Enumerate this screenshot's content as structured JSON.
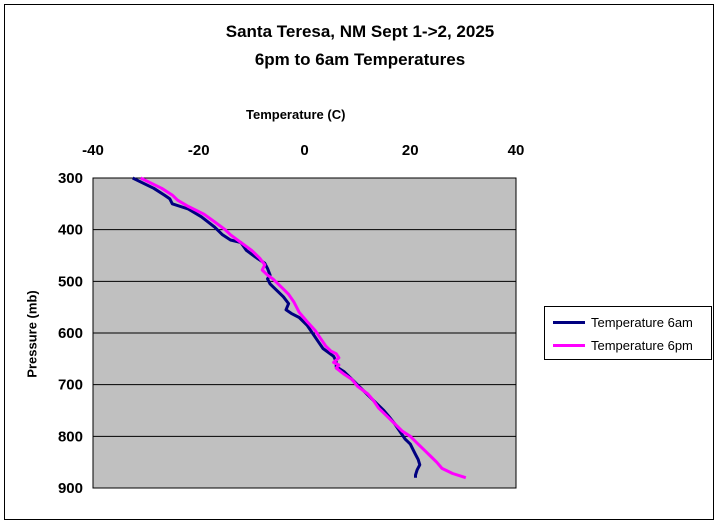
{
  "chart_data": {
    "type": "line",
    "title": "Santa Teresa, NM Sept 1->2, 2025",
    "subtitle": "6pm to 6am Temperatures",
    "xlabel": "Temperature (C)",
    "ylabel": "Pressure (mb)",
    "xlim": [
      -40,
      40
    ],
    "ylim": [
      300,
      900
    ],
    "y_inverted": true,
    "x_axis_position": "top",
    "x_ticks": [
      "-40",
      "-20",
      "0",
      "20",
      "40"
    ],
    "y_ticks": [
      "300",
      "400",
      "500",
      "600",
      "700",
      "800",
      "900"
    ],
    "plot_background": "#c0c0c0",
    "grid": "horizontal",
    "legend_position": "right",
    "series": [
      {
        "name": "Temperature 6am",
        "color": "#000080",
        "points": [
          [
            -32.5,
            300
          ],
          [
            -30.5,
            310
          ],
          [
            -28.5,
            320
          ],
          [
            -26.5,
            333
          ],
          [
            -25.5,
            340
          ],
          [
            -25,
            350
          ],
          [
            -22,
            360
          ],
          [
            -19.5,
            375
          ],
          [
            -17,
            395
          ],
          [
            -15.5,
            410
          ],
          [
            -14,
            420
          ],
          [
            -12,
            425
          ],
          [
            -11,
            440
          ],
          [
            -9,
            455
          ],
          [
            -7.5,
            465
          ],
          [
            -7,
            475
          ],
          [
            -6.5,
            488
          ],
          [
            -7,
            495
          ],
          [
            -6.5,
            505
          ],
          [
            -5,
            520
          ],
          [
            -4,
            530
          ],
          [
            -3,
            543
          ],
          [
            -3.5,
            555
          ],
          [
            -2.5,
            562
          ],
          [
            -1,
            570
          ],
          [
            0.5,
            585
          ],
          [
            1.5,
            600
          ],
          [
            2.5,
            615
          ],
          [
            3.5,
            630
          ],
          [
            5.5,
            645
          ],
          [
            6,
            655
          ],
          [
            6,
            665
          ],
          [
            7.5,
            675
          ],
          [
            9,
            690
          ],
          [
            10,
            700
          ],
          [
            11.5,
            715
          ],
          [
            13,
            730
          ],
          [
            14,
            740
          ],
          [
            15,
            750
          ],
          [
            16,
            762
          ],
          [
            17,
            775
          ],
          [
            18,
            790
          ],
          [
            19,
            805
          ],
          [
            20,
            815
          ],
          [
            20.5,
            825
          ],
          [
            21,
            835
          ],
          [
            21.5,
            845
          ],
          [
            21.8,
            855
          ],
          [
            21.3,
            865
          ],
          [
            21,
            875
          ],
          [
            21,
            880
          ]
        ]
      },
      {
        "name": "Temperature 6pm",
        "color": "#ff00ff",
        "points": [
          [
            -31,
            300
          ],
          [
            -29,
            310
          ],
          [
            -27,
            320
          ],
          [
            -25,
            333
          ],
          [
            -24,
            343
          ],
          [
            -22,
            355
          ],
          [
            -19,
            370
          ],
          [
            -17,
            385
          ],
          [
            -15,
            400
          ],
          [
            -14,
            410
          ],
          [
            -12,
            425
          ],
          [
            -10,
            440
          ],
          [
            -8.5,
            455
          ],
          [
            -7.5,
            468
          ],
          [
            -8,
            478
          ],
          [
            -7,
            488
          ],
          [
            -6,
            495
          ],
          [
            -5,
            505
          ],
          [
            -4,
            515
          ],
          [
            -3,
            525
          ],
          [
            -2,
            540
          ],
          [
            -1,
            560
          ],
          [
            0.5,
            578
          ],
          [
            2,
            595
          ],
          [
            3,
            610
          ],
          [
            4,
            625
          ],
          [
            5,
            635
          ],
          [
            6,
            640
          ],
          [
            6.5,
            648
          ],
          [
            5.5,
            657
          ],
          [
            6.5,
            662
          ],
          [
            6,
            668
          ],
          [
            7.5,
            680
          ],
          [
            9,
            690
          ],
          [
            10,
            703
          ],
          [
            12,
            718
          ],
          [
            13,
            730
          ],
          [
            14,
            745
          ],
          [
            15.5,
            760
          ],
          [
            17,
            775
          ],
          [
            18.5,
            790
          ],
          [
            20,
            800
          ],
          [
            21,
            810
          ],
          [
            22,
            820
          ],
          [
            23,
            830
          ],
          [
            24,
            840
          ],
          [
            25,
            850
          ],
          [
            26,
            862
          ],
          [
            28,
            872
          ],
          [
            30.5,
            880
          ]
        ]
      }
    ]
  }
}
